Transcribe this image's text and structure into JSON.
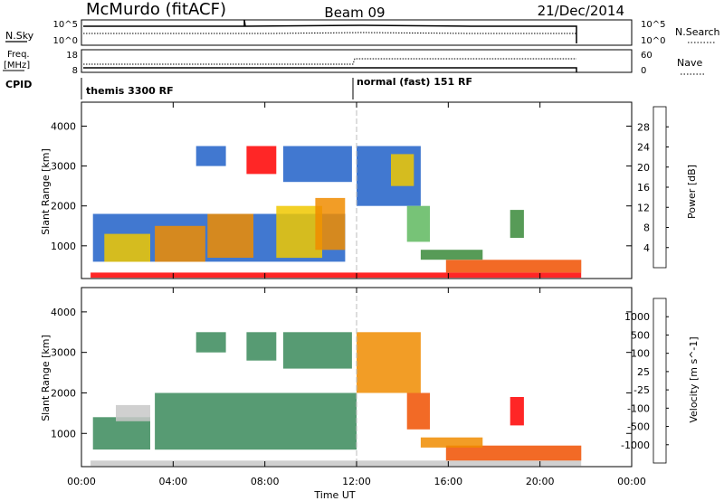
{
  "header": {
    "station": "McMurdo (fitACF)",
    "beam": "Beam 09",
    "date": "21/Dec/2014"
  },
  "noise_panel": {
    "left_label": "N.Sky",
    "left_ticks": [
      "10^5",
      "10^0"
    ],
    "right_ticks": [
      "10^5",
      "10^0"
    ],
    "right_label": "N.Search"
  },
  "freq_panel": {
    "left_label_line1": "Freq.",
    "left_label_line2": "[MHz]",
    "left_ticks": [
      "18",
      "8"
    ],
    "right_ticks": [
      "60",
      "0"
    ],
    "right_label": "Nave"
  },
  "cpid": {
    "label": "CPID",
    "mode1": "themis 3300 RF",
    "mode2": "normal (fast) 151 RF"
  },
  "chart_data": [
    {
      "type": "heatmap",
      "title": "",
      "xlabel": "Time UT",
      "ylabel": "Slant Range [km]",
      "x_ticks": [
        "00:00",
        "04:00",
        "08:00",
        "12:00",
        "16:00",
        "20:00",
        "00:00"
      ],
      "y_ticks": [
        "1000",
        "2000",
        "3000",
        "4000"
      ],
      "xlim_hours": [
        0,
        24
      ],
      "ylim_km": [
        180,
        4600
      ],
      "data_end_hour": 21.8,
      "colorbar": {
        "label": "Power [dB]",
        "ticks": [
          "4",
          "8",
          "12",
          "16",
          "20",
          "24",
          "28"
        ],
        "colors": [
          "#1010ff",
          "#2060c8",
          "#3a8a3a",
          "#5fb85f",
          "#f0c800",
          "#f08c00",
          "#f05000",
          "#ff0000"
        ]
      },
      "regions": [
        {
          "x": [
            0.4,
            21.8
          ],
          "y": [
            200,
            330
          ],
          "level": 7
        },
        {
          "x": [
            15.9,
            21.8
          ],
          "y": [
            330,
            650
          ],
          "level": 6
        },
        {
          "x": [
            14.8,
            17.5
          ],
          "y": [
            650,
            900
          ],
          "level": 2
        },
        {
          "x": [
            0.5,
            11.5
          ],
          "y": [
            600,
            1800
          ],
          "level": 1
        },
        {
          "x": [
            1.0,
            3.0
          ],
          "y": [
            600,
            1300
          ],
          "level": 4
        },
        {
          "x": [
            3.2,
            5.4
          ],
          "y": [
            600,
            1500
          ],
          "level": 5
        },
        {
          "x": [
            5.5,
            7.5
          ],
          "y": [
            700,
            1800
          ],
          "level": 5
        },
        {
          "x": [
            8.5,
            10.5
          ],
          "y": [
            700,
            2000
          ],
          "level": 4
        },
        {
          "x": [
            10.2,
            11.5
          ],
          "y": [
            900,
            2200
          ],
          "level": 5
        },
        {
          "x": [
            7.2,
            8.5
          ],
          "y": [
            2800,
            3500
          ],
          "level": 7
        },
        {
          "x": [
            8.8,
            11.8
          ],
          "y": [
            2600,
            3500
          ],
          "level": 1
        },
        {
          "x": [
            12.0,
            14.8
          ],
          "y": [
            2000,
            3500
          ],
          "level": 1
        },
        {
          "x": [
            13.5,
            14.5
          ],
          "y": [
            2500,
            3300
          ],
          "level": 4
        },
        {
          "x": [
            14.2,
            15.2
          ],
          "y": [
            1100,
            2000
          ],
          "level": 3
        },
        {
          "x": [
            18.7,
            19.3
          ],
          "y": [
            1200,
            1900
          ],
          "level": 2
        },
        {
          "x": [
            5.0,
            6.3
          ],
          "y": [
            3000,
            3500
          ],
          "level": 1
        }
      ]
    },
    {
      "type": "heatmap",
      "title": "",
      "xlabel": "Time UT",
      "ylabel": "Slant Range [km]",
      "x_ticks": [
        "00:00",
        "04:00",
        "08:00",
        "12:00",
        "16:00",
        "20:00",
        "00:00"
      ],
      "y_ticks": [
        "1000",
        "2000",
        "3000",
        "4000"
      ],
      "xlim_hours": [
        0,
        24
      ],
      "ylim_km": [
        180,
        4600
      ],
      "data_end_hour": 21.8,
      "colorbar": {
        "label": "Velocity [m s^-1]",
        "ticks": [
          "1000",
          "500",
          "100",
          "25",
          "-25",
          "-100",
          "-500",
          "-1000"
        ],
        "colors": [
          "#1e3ca0",
          "#2a78c8",
          "#3a8a5a",
          "#50c040",
          "#c8c8c8",
          "#f0c800",
          "#f08c00",
          "#f05000",
          "#ff0000"
        ]
      },
      "regions": [
        {
          "x": [
            0.4,
            21.8
          ],
          "y": [
            200,
            330
          ],
          "level": 4
        },
        {
          "x": [
            15.9,
            21.8
          ],
          "y": [
            330,
            700
          ],
          "level": 7
        },
        {
          "x": [
            14.8,
            17.5
          ],
          "y": [
            650,
            900
          ],
          "level": 6
        },
        {
          "x": [
            0.5,
            3.0
          ],
          "y": [
            600,
            1400
          ],
          "level": 2
        },
        {
          "x": [
            3.2,
            12.0
          ],
          "y": [
            600,
            2000
          ],
          "level": 2
        },
        {
          "x": [
            1.5,
            3.0
          ],
          "y": [
            1300,
            1700
          ],
          "level": 4
        },
        {
          "x": [
            12.0,
            14.8
          ],
          "y": [
            2000,
            3500
          ],
          "level": 6
        },
        {
          "x": [
            7.2,
            8.5
          ],
          "y": [
            2800,
            3500
          ],
          "level": 2
        },
        {
          "x": [
            8.8,
            11.8
          ],
          "y": [
            2600,
            3500
          ],
          "level": 2
        },
        {
          "x": [
            14.2,
            15.2
          ],
          "y": [
            1100,
            2000
          ],
          "level": 7
        },
        {
          "x": [
            18.7,
            19.3
          ],
          "y": [
            1200,
            1900
          ],
          "level": 8
        },
        {
          "x": [
            5.0,
            6.3
          ],
          "y": [
            3000,
            3500
          ],
          "level": 2
        }
      ]
    }
  ]
}
